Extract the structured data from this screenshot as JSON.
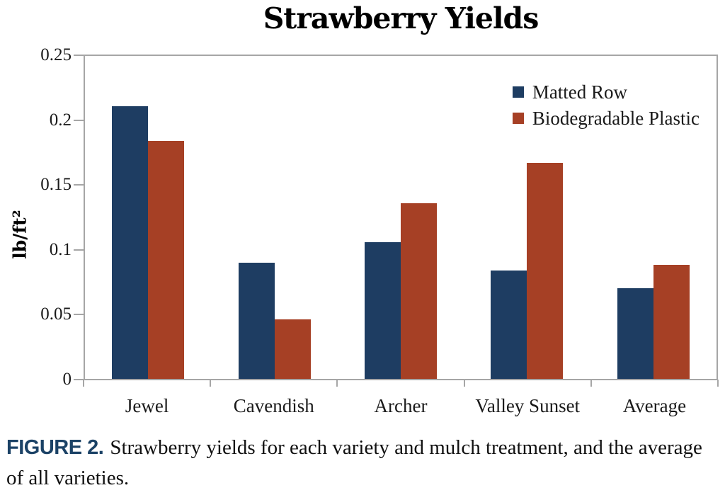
{
  "chart_data": {
    "type": "bar",
    "title": "Strawberry Yields",
    "ylabel": "lb/ft²",
    "xlabel": "",
    "categories": [
      "Jewel",
      "Cavendish",
      "Archer",
      "Valley Sunset",
      "Average"
    ],
    "series": [
      {
        "name": "Matted Row",
        "color": "#1e3d62",
        "values": [
          0.211,
          0.09,
          0.106,
          0.084,
          0.07
        ]
      },
      {
        "name": "Biodegradable Plastic",
        "color": "#a64025",
        "values": [
          0.184,
          0.046,
          0.136,
          0.167,
          0.088
        ]
      }
    ],
    "ylim": [
      0,
      0.25
    ],
    "y_ticks": [
      "0",
      "0.05",
      "0.1",
      "0.15",
      "0.2",
      "0.25"
    ],
    "grid": "off",
    "legend_position": "top-right"
  },
  "caption": {
    "label": "FIGURE 2.",
    "text": "Strawberry yields for each variety and mulch treatment, and the average of all varieties."
  },
  "colors": {
    "matted_row": "#1e3d62",
    "biodegradable_plastic": "#a64025",
    "axis": "#a6a6a6",
    "caption_label": "#1b4266"
  }
}
